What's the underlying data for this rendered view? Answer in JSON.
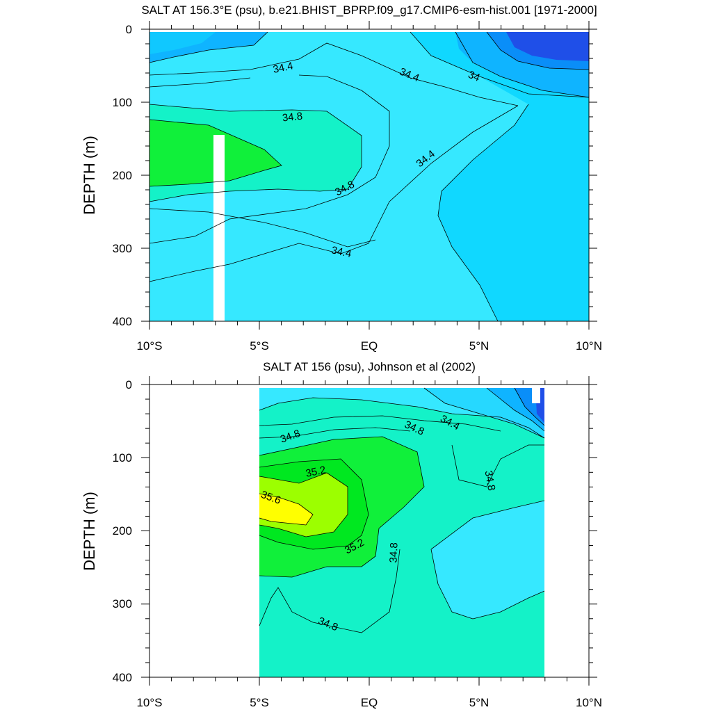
{
  "chart_data": [
    {
      "type": "heatmap",
      "title": "SALT AT 156.3°E (psu), b.e21.BHIST_BPRP.f09_g17.CMIP6-esm-hist.001 [1971-2000]",
      "ylabel": "DEPTH (m)",
      "xlabel": "",
      "xlim": [
        -10,
        10
      ],
      "ylim": [
        400,
        0
      ],
      "x_ticks": [
        "10°S",
        "5°S",
        "EQ",
        "5°N",
        "10°N"
      ],
      "y_ticks": [
        "0",
        "100",
        "200",
        "300",
        "400"
      ],
      "contour_labels": [
        "34.4",
        "34.4",
        "34",
        "34.8",
        "34.8",
        "34.4",
        "34.4"
      ],
      "contour_interval": 0.2,
      "salinity_range_psu": [
        33.8,
        34.9
      ],
      "data_gap": {
        "x": -6.5,
        "depth_range": [
          145,
          400
        ]
      },
      "colors": {
        "low": "#1f4fe8",
        "mid_low": "#0fb4ff",
        "mid": "#36e8ff",
        "high": "#14f28c",
        "max": "#10f03a"
      }
    },
    {
      "type": "heatmap",
      "title": "SALT AT 156 (psu), Johnson et al (2002)",
      "ylabel": "DEPTH (m)",
      "xlabel": "",
      "xlim": [
        -10,
        10
      ],
      "ylim": [
        400,
        0
      ],
      "x_ticks": [
        "10°S",
        "5°S",
        "EQ",
        "5°N",
        "10°N"
      ],
      "y_ticks": [
        "0",
        "100",
        "200",
        "300",
        "400"
      ],
      "contour_labels": [
        "34.8",
        "34.8",
        "34.4",
        "34.8",
        "35.2",
        "35.6",
        "35.2",
        "34.8",
        "34.8"
      ],
      "contour_interval": 0.2,
      "data_xrange": [
        -5,
        8
      ],
      "salinity_range_psu": [
        34.0,
        35.7
      ],
      "colors": {
        "low": "#1f4fe8",
        "mid": "#36e8ff",
        "teal": "#14f2c8",
        "green": "#10f03a",
        "lime": "#9cff00",
        "max": "#ffff00"
      }
    }
  ]
}
